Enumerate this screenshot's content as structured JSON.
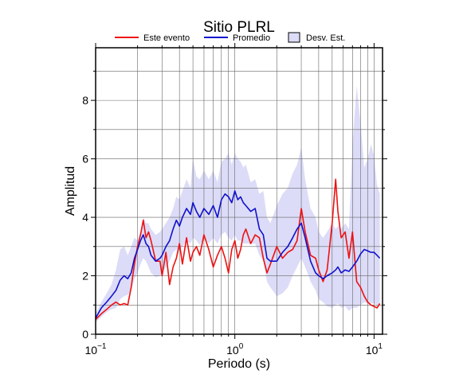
{
  "chart_data": {
    "type": "line",
    "title": "Sitio PLRL",
    "xlabel": "Periodo (s)",
    "ylabel": "Amplitud",
    "x_scale": "log",
    "xlim": [
      0.1,
      11.5
    ],
    "ylim": [
      0,
      9.8
    ],
    "x_ticks": [
      {
        "value": 0.1,
        "base": "10",
        "exp": "−1"
      },
      {
        "value": 1,
        "base": "10",
        "exp": "0"
      },
      {
        "value": 10,
        "base": "10",
        "exp": "1"
      }
    ],
    "y_ticks": [
      0,
      2,
      4,
      6,
      8
    ],
    "grid": true,
    "legend_position": "top",
    "legend": {
      "este": "Este evento",
      "promedio": "Promedio",
      "desv": "Desv. Est."
    },
    "colors": {
      "este": "#ee1111",
      "promedio": "#1111cc",
      "band": "#dcdcf8"
    },
    "series": [
      {
        "name": "Este evento",
        "x": [
          0.1,
          0.11,
          0.12,
          0.13,
          0.14,
          0.15,
          0.16,
          0.17,
          0.18,
          0.19,
          0.2,
          0.21,
          0.22,
          0.23,
          0.24,
          0.25,
          0.27,
          0.29,
          0.3,
          0.32,
          0.34,
          0.36,
          0.38,
          0.4,
          0.42,
          0.45,
          0.48,
          0.5,
          0.53,
          0.56,
          0.6,
          0.65,
          0.7,
          0.75,
          0.8,
          0.85,
          0.9,
          0.95,
          1.0,
          1.05,
          1.1,
          1.15,
          1.2,
          1.3,
          1.4,
          1.5,
          1.6,
          1.7,
          1.8,
          2.0,
          2.2,
          2.4,
          2.6,
          2.8,
          3.0,
          3.2,
          3.5,
          3.8,
          4.0,
          4.3,
          4.6,
          5.0,
          5.3,
          5.5,
          5.8,
          6.2,
          6.6,
          7.0,
          7.5,
          8.0,
          8.5,
          9.0,
          9.5,
          10.0,
          10.5,
          11.0
        ],
        "y": [
          0.5,
          0.7,
          0.85,
          1.0,
          1.1,
          1.0,
          1.05,
          1.0,
          1.6,
          2.4,
          3.0,
          3.4,
          3.9,
          3.3,
          3.5,
          3.2,
          2.5,
          2.5,
          2.0,
          2.8,
          1.7,
          2.3,
          2.6,
          3.1,
          2.4,
          3.3,
          2.5,
          2.8,
          3.0,
          2.7,
          3.4,
          2.9,
          2.3,
          2.7,
          3.0,
          2.6,
          2.1,
          2.9,
          3.2,
          2.6,
          2.9,
          3.4,
          3.6,
          3.1,
          3.4,
          3.3,
          2.6,
          2.1,
          2.4,
          3.0,
          2.6,
          2.8,
          2.9,
          3.2,
          4.3,
          3.5,
          2.7,
          2.6,
          2.2,
          1.8,
          2.2,
          3.8,
          5.3,
          4.2,
          3.3,
          3.5,
          2.6,
          3.5,
          1.8,
          1.6,
          1.3,
          1.1,
          1.0,
          0.95,
          0.9,
          1.05
        ]
      },
      {
        "name": "Promedio",
        "x": [
          0.1,
          0.11,
          0.12,
          0.13,
          0.14,
          0.15,
          0.16,
          0.17,
          0.18,
          0.19,
          0.2,
          0.21,
          0.22,
          0.23,
          0.24,
          0.25,
          0.27,
          0.29,
          0.3,
          0.32,
          0.34,
          0.36,
          0.38,
          0.4,
          0.42,
          0.45,
          0.48,
          0.5,
          0.53,
          0.56,
          0.6,
          0.65,
          0.7,
          0.75,
          0.8,
          0.85,
          0.9,
          0.95,
          1.0,
          1.05,
          1.1,
          1.15,
          1.2,
          1.3,
          1.4,
          1.5,
          1.6,
          1.7,
          1.8,
          2.0,
          2.2,
          2.4,
          2.6,
          2.8,
          3.0,
          3.2,
          3.5,
          3.8,
          4.0,
          4.3,
          4.6,
          5.0,
          5.3,
          5.5,
          5.8,
          6.2,
          6.6,
          7.0,
          7.5,
          8.0,
          8.5,
          9.0,
          9.5,
          10.0,
          10.5,
          11.0
        ],
        "y": [
          0.55,
          0.9,
          1.1,
          1.3,
          1.5,
          1.85,
          2.0,
          1.9,
          2.1,
          2.6,
          2.9,
          3.2,
          3.4,
          3.1,
          3.0,
          2.7,
          2.5,
          2.6,
          2.7,
          3.0,
          3.2,
          3.6,
          3.9,
          3.7,
          4.0,
          4.3,
          4.1,
          4.5,
          4.2,
          4.0,
          4.3,
          4.1,
          4.4,
          4.0,
          4.6,
          4.8,
          4.7,
          4.5,
          4.9,
          4.6,
          4.7,
          4.5,
          4.4,
          4.2,
          4.3,
          3.6,
          3.4,
          2.6,
          2.5,
          2.5,
          2.8,
          3.0,
          3.3,
          3.6,
          3.8,
          3.3,
          2.5,
          2.1,
          2.0,
          1.9,
          2.0,
          2.1,
          2.2,
          2.3,
          2.1,
          2.2,
          2.15,
          2.3,
          2.5,
          2.75,
          2.9,
          2.85,
          2.8,
          2.8,
          2.7,
          2.6
        ]
      }
    ],
    "band": {
      "name": "Desv. Est.",
      "x": [
        0.1,
        0.11,
        0.12,
        0.13,
        0.14,
        0.15,
        0.16,
        0.17,
        0.18,
        0.19,
        0.2,
        0.21,
        0.22,
        0.23,
        0.24,
        0.25,
        0.27,
        0.29,
        0.3,
        0.32,
        0.34,
        0.36,
        0.38,
        0.4,
        0.42,
        0.45,
        0.48,
        0.5,
        0.53,
        0.56,
        0.6,
        0.65,
        0.7,
        0.75,
        0.8,
        0.85,
        0.9,
        0.95,
        1.0,
        1.05,
        1.1,
        1.15,
        1.2,
        1.3,
        1.4,
        1.5,
        1.6,
        1.7,
        1.8,
        2.0,
        2.2,
        2.4,
        2.6,
        2.8,
        3.0,
        3.2,
        3.5,
        3.8,
        4.0,
        4.3,
        4.6,
        5.0,
        5.3,
        5.5,
        5.8,
        6.2,
        6.6,
        7.0,
        7.5,
        8.0,
        8.5,
        9.0,
        9.5,
        10.0,
        10.5,
        11.0
      ],
      "lower": [
        0.4,
        0.6,
        0.75,
        0.85,
        0.9,
        1.2,
        1.3,
        1.35,
        1.5,
        1.9,
        2.1,
        2.4,
        2.6,
        2.5,
        2.3,
        2.1,
        1.95,
        2.0,
        2.1,
        2.3,
        2.5,
        2.8,
        2.9,
        2.9,
        3.0,
        3.2,
        3.1,
        3.3,
        3.2,
        3.05,
        3.3,
        3.1,
        3.3,
        3.1,
        3.4,
        3.5,
        3.3,
        3.2,
        3.4,
        3.2,
        3.2,
        3.1,
        3.1,
        3.1,
        3.1,
        2.7,
        2.5,
        1.8,
        1.6,
        1.3,
        1.4,
        1.6,
        2.0,
        2.3,
        2.6,
        2.3,
        1.8,
        1.5,
        1.2,
        1.1,
        0.95,
        0.9,
        1.0,
        1.05,
        0.9,
        0.95,
        0.8,
        0.9,
        0.9,
        1.0,
        1.1,
        1.05,
        1.05,
        1.05,
        1.0,
        1.05
      ],
      "upper": [
        0.7,
        1.1,
        1.4,
        1.7,
        2.2,
        2.9,
        3.0,
        2.7,
        3.0,
        3.3,
        3.2,
        3.5,
        4.0,
        3.8,
        3.8,
        3.6,
        3.4,
        3.5,
        3.6,
        3.8,
        4.0,
        4.3,
        4.7,
        4.6,
        4.9,
        5.3,
        5.0,
        6.0,
        5.4,
        5.3,
        5.6,
        5.3,
        5.6,
        5.2,
        5.9,
        6.0,
        6.2,
        5.8,
        6.2,
        6.0,
        5.9,
        5.7,
        5.8,
        5.2,
        5.3,
        4.8,
        4.9,
        4.0,
        3.8,
        4.4,
        4.8,
        5.0,
        5.5,
        5.8,
        6.4,
        5.3,
        4.3,
        4.0,
        3.5,
        3.3,
        3.5,
        3.8,
        3.6,
        3.7,
        3.6,
        3.8,
        3.6,
        6.5,
        8.5,
        7.2,
        5.7,
        6.0,
        6.5,
        6.1,
        5.1,
        4.8
      ]
    }
  }
}
